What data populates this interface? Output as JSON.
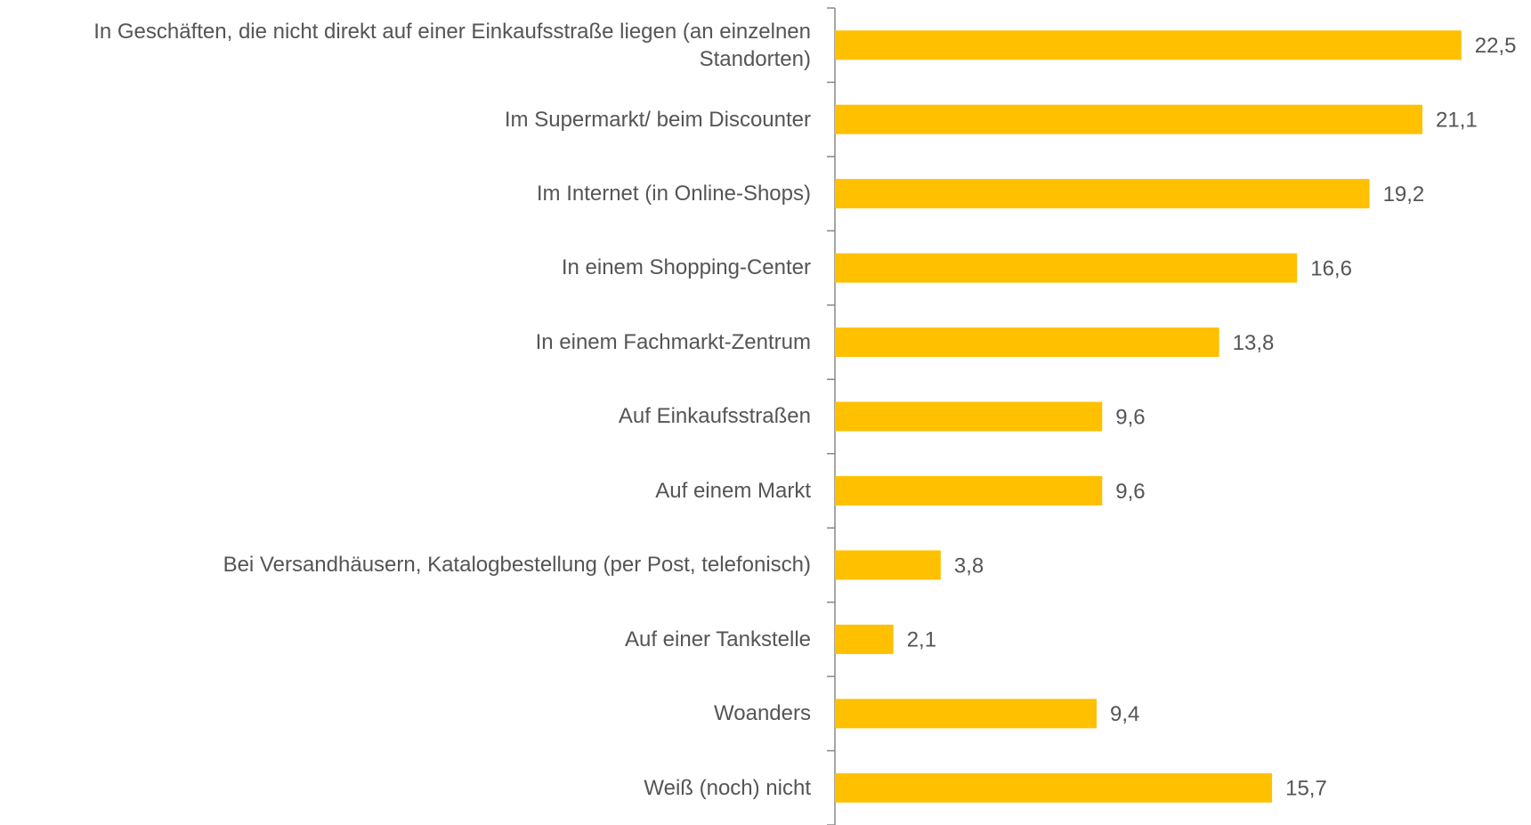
{
  "chart_data": {
    "type": "bar",
    "orientation": "horizontal",
    "categories": [
      "In Geschäften, die nicht direkt auf einer Einkaufsstraße liegen (an einzelnen Standorten)",
      "Im Supermarkt/ beim Discounter",
      "Im Internet (in Online-Shops)",
      "In einem Shopping-Center",
      "In einem Fachmarkt-Zentrum",
      "Auf Einkaufsstraßen",
      "Auf einem Markt",
      "Bei Versandhäusern, Katalogbestellung (per Post, telefonisch)",
      "Auf einer Tankstelle",
      "Woanders",
      "Weiß (noch) nicht"
    ],
    "values": [
      22.5,
      21.1,
      19.2,
      16.6,
      13.8,
      9.6,
      9.6,
      3.8,
      2.1,
      9.4,
      15.7
    ],
    "value_labels": [
      "22,5",
      "21,1",
      "19,2",
      "16,6",
      "13,8",
      "9,6",
      "9,6",
      "3,8",
      "2,1",
      "9,4",
      "15,7"
    ],
    "color": "#ffc000",
    "xlim": [
      0,
      25
    ]
  }
}
